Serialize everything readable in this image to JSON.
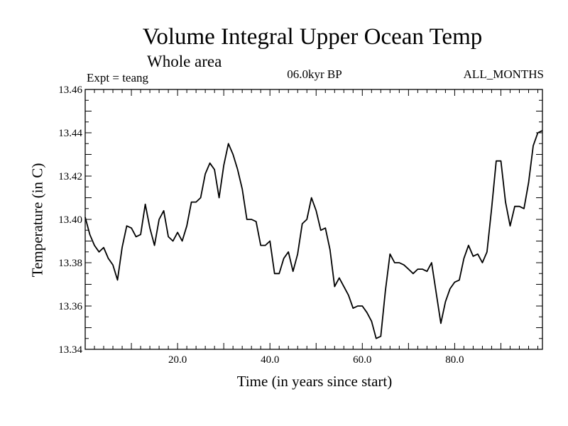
{
  "chart_data": {
    "type": "line",
    "title": "Volume Integral Upper Ocean Temp",
    "subtitle": "Whole area",
    "header_left": "Expt = teang",
    "header_center": "06.0kyr BP",
    "header_right": "ALL_MONTHS",
    "xlabel": "Time (in years since start)",
    "ylabel": "Temperature (in C)",
    "xlim": [
      0,
      99
    ],
    "ylim": [
      13.34,
      13.46
    ],
    "x_ticks": [
      20,
      40,
      60,
      80
    ],
    "x_tick_labels": [
      "20.0",
      "40.0",
      "60.0",
      "80.0"
    ],
    "y_ticks": [
      13.34,
      13.36,
      13.38,
      13.4,
      13.42,
      13.44,
      13.46
    ],
    "y_tick_labels": [
      "13.34",
      "13.36",
      "13.38",
      "13.40",
      "13.42",
      "13.44",
      "13.46"
    ],
    "grid": false,
    "line_color": "#000000",
    "series": [
      {
        "name": "Temperature",
        "x": [
          0,
          1,
          2,
          3,
          4,
          5,
          6,
          7,
          8,
          9,
          10,
          11,
          12,
          13,
          14,
          15,
          16,
          17,
          18,
          19,
          20,
          21,
          22,
          23,
          24,
          25,
          26,
          27,
          28,
          29,
          30,
          31,
          32,
          33,
          34,
          35,
          36,
          37,
          38,
          39,
          40,
          41,
          42,
          43,
          44,
          45,
          46,
          47,
          48,
          49,
          50,
          51,
          52,
          53,
          54,
          55,
          56,
          57,
          58,
          59,
          60,
          61,
          62,
          63,
          64,
          65,
          66,
          67,
          68,
          69,
          70,
          71,
          72,
          73,
          74,
          75,
          76,
          77,
          78,
          79,
          80,
          81,
          82,
          83,
          84,
          85,
          86,
          87,
          88,
          89,
          90,
          91,
          92,
          93,
          94,
          95,
          96,
          97,
          98,
          99
        ],
        "values": [
          13.401,
          13.393,
          13.388,
          13.385,
          13.387,
          13.382,
          13.379,
          13.372,
          13.387,
          13.397,
          13.396,
          13.392,
          13.393,
          13.407,
          13.396,
          13.388,
          13.4,
          13.404,
          13.392,
          13.39,
          13.394,
          13.39,
          13.397,
          13.408,
          13.408,
          13.41,
          13.421,
          13.426,
          13.423,
          13.41,
          13.425,
          13.435,
          13.43,
          13.423,
          13.414,
          13.4,
          13.4,
          13.399,
          13.388,
          13.388,
          13.39,
          13.375,
          13.375,
          13.382,
          13.385,
          13.376,
          13.384,
          13.398,
          13.4,
          13.41,
          13.404,
          13.395,
          13.396,
          13.386,
          13.369,
          13.373,
          13.369,
          13.365,
          13.359,
          13.36,
          13.36,
          13.357,
          13.353,
          13.345,
          13.346,
          13.367,
          13.384,
          13.38,
          13.38,
          13.379,
          13.377,
          13.375,
          13.377,
          13.377,
          13.376,
          13.38,
          13.366,
          13.352,
          13.362,
          13.368,
          13.371,
          13.372,
          13.382,
          13.388,
          13.383,
          13.384,
          13.38,
          13.385,
          13.405,
          13.427,
          13.427,
          13.408,
          13.397,
          13.406,
          13.406,
          13.405,
          13.417,
          13.434,
          13.44,
          13.441
        ]
      }
    ]
  }
}
